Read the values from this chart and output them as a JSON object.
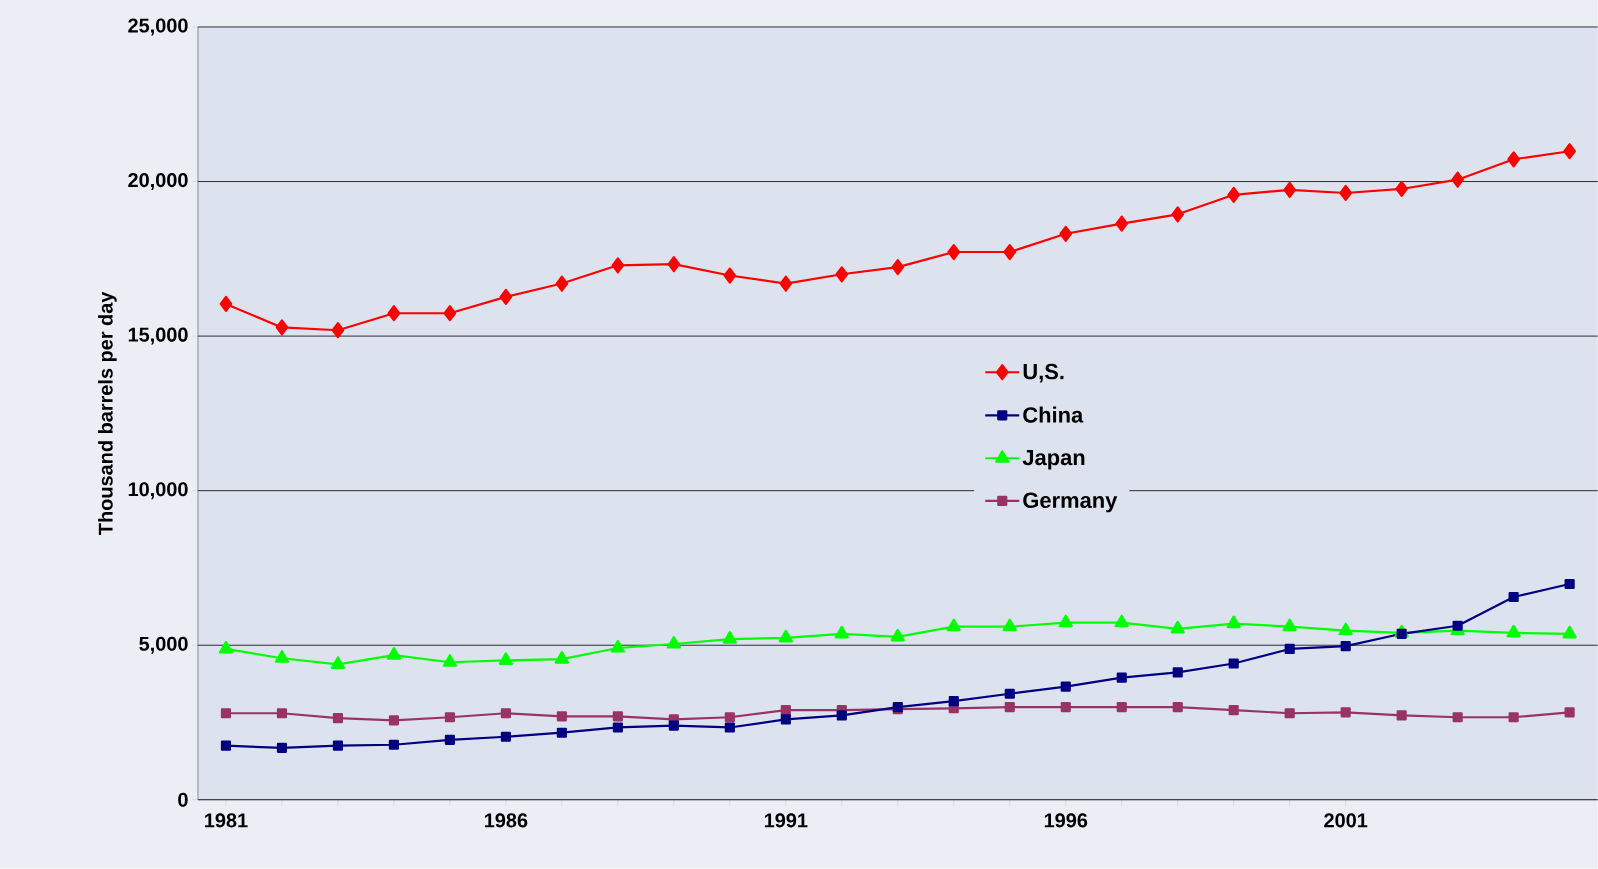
{
  "chart_data": {
    "type": "line",
    "ylabel": "Thousand barrels per day",
    "x": [
      1981,
      1982,
      1983,
      1984,
      1985,
      1986,
      1987,
      1988,
      1989,
      1990,
      1991,
      1992,
      1993,
      1994,
      1995,
      1996,
      1997,
      1998,
      1999,
      2000,
      2001,
      2002,
      2003,
      2004,
      2005
    ],
    "series": [
      {
        "name": "U,S.",
        "color": "#ff0000",
        "marker": "diamond",
        "values": [
          16040,
          15280,
          15190,
          15740,
          15740,
          16270,
          16700,
          17290,
          17330,
          16960,
          16700,
          17000,
          17230,
          17720,
          17720,
          18310,
          18640,
          18940,
          19570,
          19730,
          19630,
          19760,
          20060,
          20720,
          20980
        ]
      },
      {
        "name": "China",
        "color": "#000080",
        "marker": "square",
        "values": [
          1750,
          1680,
          1750,
          1780,
          1940,
          2040,
          2170,
          2340,
          2400,
          2340,
          2600,
          2730,
          3000,
          3190,
          3430,
          3660,
          3950,
          4120,
          4410,
          4880,
          4970,
          5370,
          5630,
          6560,
          6980
        ]
      },
      {
        "name": "Japan",
        "color": "#00ff00",
        "marker": "triangle",
        "values": [
          4880,
          4580,
          4380,
          4680,
          4450,
          4510,
          4550,
          4910,
          5040,
          5200,
          5240,
          5370,
          5270,
          5600,
          5600,
          5730,
          5730,
          5530,
          5700,
          5600,
          5470,
          5400,
          5470,
          5400,
          5370
        ]
      },
      {
        "name": "Germany",
        "color": "#993366",
        "marker": "square",
        "values": [
          2800,
          2800,
          2640,
          2570,
          2670,
          2800,
          2700,
          2700,
          2600,
          2670,
          2900,
          2900,
          2930,
          2960,
          3000,
          3000,
          3000,
          3000,
          2900,
          2800,
          2830,
          2730,
          2670,
          2670,
          2830
        ]
      }
    ],
    "xlim": [
      1980.5,
      2005.5
    ],
    "xticks": [
      1981,
      1986,
      1991,
      1996,
      2001
    ],
    "ylim": [
      0,
      25000
    ],
    "yticks": [
      {
        "value": 0,
        "label": "0"
      },
      {
        "value": 5000,
        "label": "5,000"
      },
      {
        "value": 10000,
        "label": "10,000"
      },
      {
        "value": 15000,
        "label": "15,000"
      },
      {
        "value": 20000,
        "label": "20,000"
      },
      {
        "value": 25000,
        "label": "25,000"
      }
    ],
    "grid": "y",
    "legend": "center",
    "line_style": "solid"
  }
}
